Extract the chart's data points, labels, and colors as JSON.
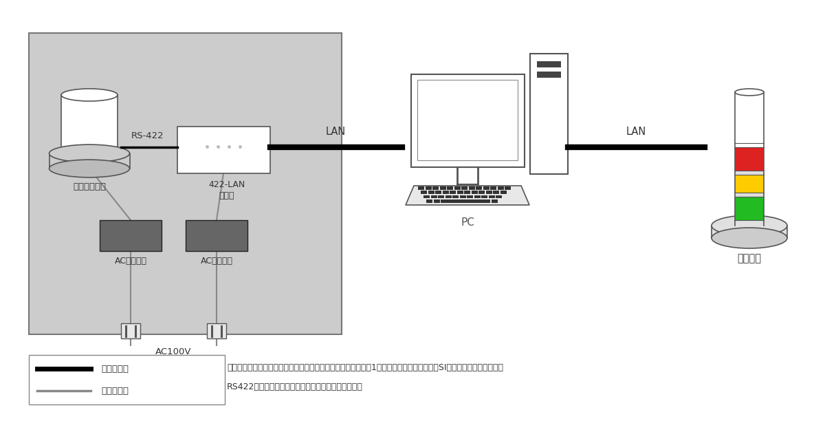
{
  "bg_color": "#ffffff",
  "box_bg": "#cccccc",
  "box_border": "#555555",
  "sensor_label": "一体型震度計",
  "converter_label": "422-LAN\n変換器",
  "rs422_label": "RS-422",
  "lan_label1": "LAN",
  "lan_label2": "LAN",
  "pc_label": "PC",
  "alarm_label": "警報装置",
  "ac_label1": "ACアダプタ",
  "ac_label2": "ACアダプタ",
  "ac100v_label": "AC100V",
  "comm_line_label": "通信ライン",
  "power_line_label": "電源ライン",
  "desc_line1": "一体型地震計は外部からの電源投入することで計測を開始し、1秒毎に計測震度・加速度・SI値・長周期地震動階級を",
  "desc_line2": "RS422出力するので、単体での地震観測も可能です。",
  "fig_width": 12.0,
  "fig_height": 6.28,
  "dpi": 100
}
